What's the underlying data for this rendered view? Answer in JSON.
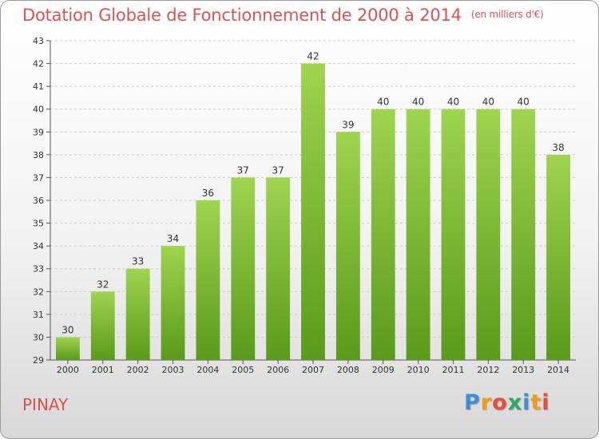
{
  "header": {
    "title": "Dotation Globale de Fonctionnement de 2000 à 2014",
    "unit": "(en milliers d'€)"
  },
  "footer": {
    "commune": "PINAY",
    "logo": {
      "letters": [
        "P",
        "r",
        "o",
        "x",
        "i",
        "t",
        "i"
      ],
      "colors": [
        "#3a8fd6",
        "#f39c12",
        "#e74c3c",
        "#27ae60",
        "#3a8fd6",
        "#f39c12",
        "#e74c3c"
      ]
    }
  },
  "chart_data": {
    "type": "bar",
    "title": "Dotation Globale de Fonctionnement de 2000 à 2014",
    "categories": [
      "2000",
      "2001",
      "2002",
      "2003",
      "2004",
      "2005",
      "2006",
      "2007",
      "2008",
      "2009",
      "2010",
      "2011",
      "2012",
      "2013",
      "2014"
    ],
    "values": [
      30,
      32,
      33,
      34,
      36,
      37,
      37,
      42,
      39,
      40,
      40,
      40,
      40,
      40,
      38
    ],
    "ylim": [
      29,
      43
    ],
    "yticks": [
      29,
      30,
      31,
      32,
      33,
      34,
      35,
      36,
      37,
      38,
      39,
      40,
      41,
      42,
      43
    ],
    "grid": true,
    "bar_color": "#7cbb3a",
    "bar_color_light": "#9fd44e",
    "bar_color_dark": "#5a9a1a"
  }
}
